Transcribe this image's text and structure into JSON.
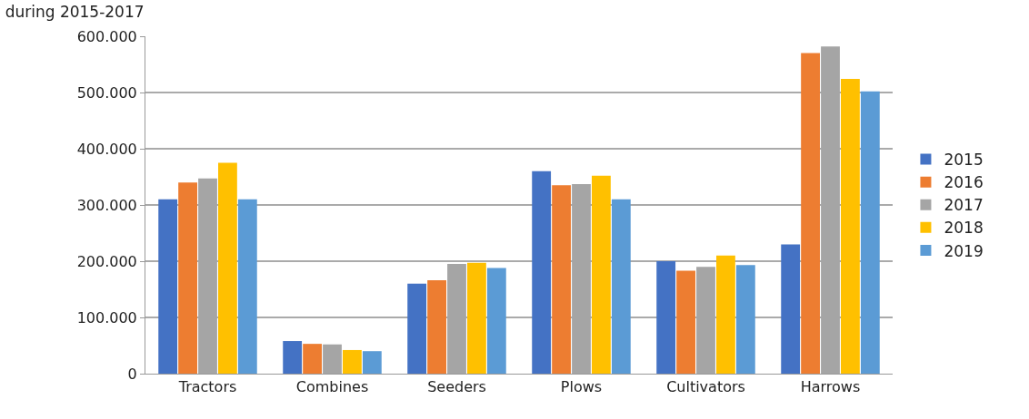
{
  "chart_data": {
    "type": "bar",
    "title": "during 2015-2017",
    "categories": [
      "Tractors",
      "Combines",
      "Seeders",
      "Plows",
      "Cultivators",
      "Harrows"
    ],
    "series": [
      {
        "name": "2015",
        "color": "#4472c4",
        "values": [
          310000,
          58000,
          160000,
          360000,
          200000,
          230000
        ]
      },
      {
        "name": "2016",
        "color": "#ed7d31",
        "values": [
          340000,
          53000,
          166000,
          335000,
          183000,
          570000
        ]
      },
      {
        "name": "2017",
        "color": "#a5a5a5",
        "values": [
          347000,
          52000,
          195000,
          337000,
          190000,
          582000
        ]
      },
      {
        "name": "2018",
        "color": "#ffc000",
        "values": [
          375000,
          42000,
          197000,
          352000,
          210000,
          524000
        ]
      },
      {
        "name": "2019",
        "color": "#5b9bd5",
        "values": [
          310000,
          40000,
          188000,
          310000,
          193000,
          502000
        ]
      }
    ],
    "ylim": [
      0,
      600000
    ],
    "yticks": [
      {
        "value": 0,
        "label": "0"
      },
      {
        "value": 100000,
        "label": "100.000"
      },
      {
        "value": 200000,
        "label": "200.000"
      },
      {
        "value": 300000,
        "label": "300.000"
      },
      {
        "value": 400000,
        "label": "400.000"
      },
      {
        "value": 500000,
        "label": "500.000"
      },
      {
        "value": 600000,
        "label": "600.000"
      }
    ],
    "grid": "y",
    "legend": "right"
  }
}
